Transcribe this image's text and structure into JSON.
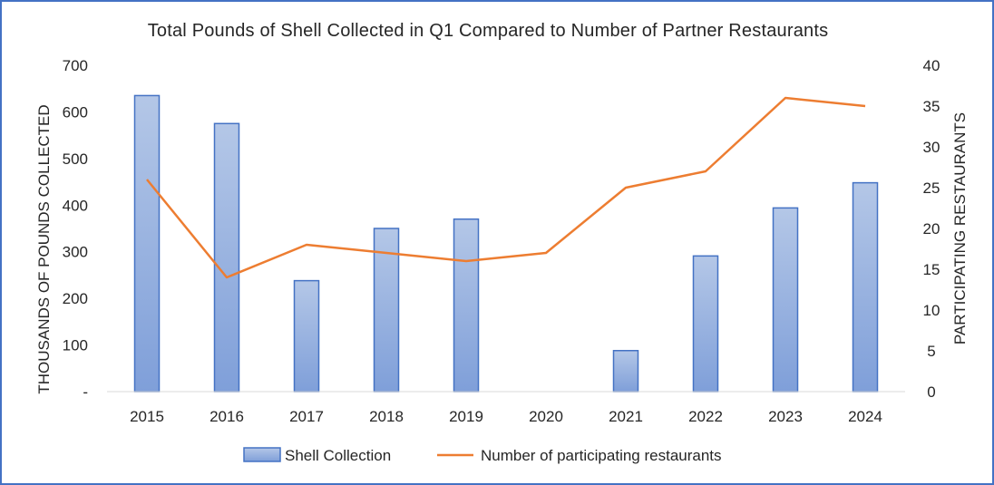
{
  "chart_data": {
    "type": "bar",
    "title": "Total Pounds of Shell Collected in Q1 Compared to Number of Partner Restaurants",
    "categories": [
      "2015",
      "2016",
      "2017",
      "2018",
      "2019",
      "2020",
      "2021",
      "2022",
      "2023",
      "2024"
    ],
    "ylabel": "THOUSANDS OF POUNDS COLLECTED",
    "y2label": "PARTICIPATING RESTAURANTS",
    "ylim": [
      0,
      700
    ],
    "y2lim": [
      0,
      40
    ],
    "yticks": [
      "-",
      "100",
      "200",
      "300",
      "400",
      "500",
      "600",
      "700"
    ],
    "y2ticks": [
      "0",
      "5",
      "10",
      "15",
      "20",
      "25",
      "30",
      "35",
      "40"
    ],
    "grid": false,
    "legend_position": "bottom",
    "series": [
      {
        "name": "Shell Collection",
        "type": "bar",
        "axis": "left",
        "color": "#8faadc",
        "values": [
          635,
          575,
          238,
          350,
          370,
          0,
          88,
          291,
          394,
          448
        ]
      },
      {
        "name": "Number of participating restaurants",
        "type": "line",
        "axis": "right",
        "color": "#ed7d31",
        "values": [
          26,
          14,
          18,
          17,
          16,
          17,
          25,
          27,
          36,
          35
        ]
      }
    ]
  }
}
